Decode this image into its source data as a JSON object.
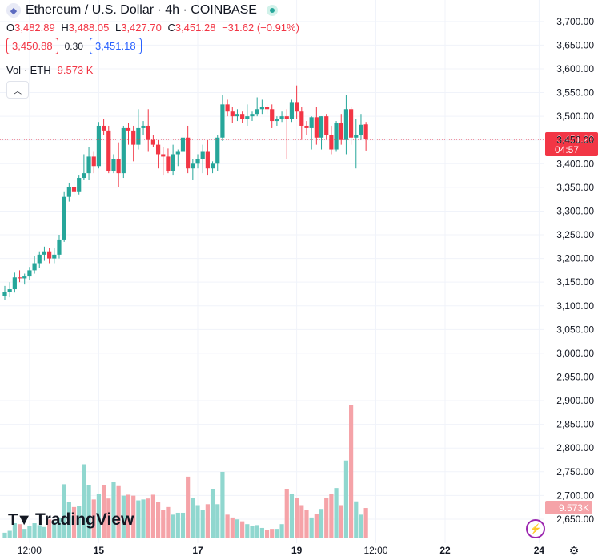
{
  "header": {
    "symbol_title": "Ethereum / U.S. Dollar · 4h · COINBASE",
    "ohlc": {
      "o_label": "O",
      "o": "3,482.89",
      "h_label": "H",
      "h": "3,488.05",
      "l_label": "L",
      "l": "3,427.70",
      "c_label": "C",
      "c": "3,451.28",
      "change": "−31.62 (−0.91%)"
    },
    "bid": "3,450.88",
    "spread": "0.30",
    "ask": "3,451.18",
    "volume_label": "Vol · ETH",
    "volume_value": "9.573 K"
  },
  "branding": {
    "logo_text": "TradingView"
  },
  "colors": {
    "up": "#26a69a",
    "down": "#f23645",
    "vol_up": "#90d7cf",
    "vol_down": "#f5a3a8"
  },
  "chart_data": {
    "type": "candlestick",
    "price_axis": {
      "ticks": [
        "3,700.00",
        "3,650.00",
        "3,600.00",
        "3,550.00",
        "3,500.00",
        "3,450.00",
        "3,400.00",
        "3,350.00",
        "3,300.00",
        "3,250.00",
        "3,200.00",
        "3,150.00",
        "3,100.00",
        "3,050.00",
        "3,000.00",
        "2,950.00",
        "2,900.00",
        "2,850.00",
        "2,800.00",
        "2,750.00",
        "2,700.00",
        "2,650.00"
      ],
      "range": [
        2633,
        3720
      ]
    },
    "time_axis": {
      "labels": [
        "12:00",
        "15",
        "17",
        "19",
        "12:00",
        "22",
        "24"
      ],
      "label_bar_index": [
        5,
        19,
        39,
        59,
        75,
        89,
        108
      ]
    },
    "last_price": "3,451.28",
    "countdown": "04:57",
    "last_volume": "9.573K",
    "candles": [
      [
        3120,
        3142,
        3112,
        3130
      ],
      [
        3130,
        3150,
        3118,
        3135
      ],
      [
        3135,
        3170,
        3128,
        3160
      ],
      [
        3160,
        3175,
        3150,
        3158
      ],
      [
        3158,
        3168,
        3145,
        3162
      ],
      [
        3162,
        3182,
        3155,
        3175
      ],
      [
        3175,
        3205,
        3168,
        3190
      ],
      [
        3190,
        3215,
        3180,
        3208
      ],
      [
        3208,
        3225,
        3195,
        3215
      ],
      [
        3215,
        3222,
        3190,
        3200
      ],
      [
        3200,
        3222,
        3190,
        3208
      ],
      [
        3208,
        3250,
        3200,
        3240
      ],
      [
        3240,
        3340,
        3235,
        3330
      ],
      [
        3330,
        3360,
        3320,
        3350
      ],
      [
        3350,
        3365,
        3330,
        3340
      ],
      [
        3340,
        3375,
        3335,
        3370
      ],
      [
        3370,
        3420,
        3365,
        3380
      ],
      [
        3380,
        3435,
        3365,
        3415
      ],
      [
        3415,
        3425,
        3380,
        3395
      ],
      [
        3395,
        3488,
        3390,
        3480
      ],
      [
        3480,
        3495,
        3460,
        3470
      ],
      [
        3470,
        3480,
        3380,
        3385
      ],
      [
        3385,
        3420,
        3380,
        3410
      ],
      [
        3410,
        3445,
        3350,
        3380
      ],
      [
        3380,
        3480,
        3370,
        3475
      ],
      [
        3475,
        3485,
        3440,
        3470
      ],
      [
        3470,
        3480,
        3405,
        3440
      ],
      [
        3440,
        3515,
        3430,
        3475
      ],
      [
        3475,
        3490,
        3460,
        3480
      ],
      [
        3480,
        3515,
        3425,
        3450
      ],
      [
        3450,
        3460,
        3435,
        3440
      ],
      [
        3440,
        3450,
        3390,
        3420
      ],
      [
        3420,
        3435,
        3375,
        3415
      ],
      [
        3415,
        3432,
        3380,
        3385
      ],
      [
        3385,
        3440,
        3375,
        3420
      ],
      [
        3420,
        3430,
        3395,
        3425
      ],
      [
        3425,
        3460,
        3410,
        3455
      ],
      [
        3455,
        3480,
        3380,
        3390
      ],
      [
        3390,
        3410,
        3365,
        3400
      ],
      [
        3400,
        3420,
        3390,
        3410
      ],
      [
        3410,
        3440,
        3380,
        3425
      ],
      [
        3425,
        3450,
        3375,
        3390
      ],
      [
        3390,
        3405,
        3380,
        3400
      ],
      [
        3400,
        3460,
        3385,
        3455
      ],
      [
        3455,
        3545,
        3448,
        3525
      ],
      [
        3525,
        3535,
        3500,
        3510
      ],
      [
        3510,
        3520,
        3485,
        3500
      ],
      [
        3500,
        3515,
        3490,
        3505
      ],
      [
        3505,
        3510,
        3485,
        3495
      ],
      [
        3495,
        3525,
        3480,
        3500
      ],
      [
        3500,
        3510,
        3490,
        3505
      ],
      [
        3505,
        3540,
        3500,
        3515
      ],
      [
        3515,
        3535,
        3505,
        3520
      ],
      [
        3520,
        3525,
        3505,
        3515
      ],
      [
        3515,
        3525,
        3475,
        3490
      ],
      [
        3490,
        3500,
        3480,
        3495
      ],
      [
        3495,
        3510,
        3488,
        3500
      ],
      [
        3500,
        3515,
        3410,
        3495
      ],
      [
        3495,
        3535,
        3488,
        3530
      ],
      [
        3530,
        3565,
        3495,
        3510
      ],
      [
        3510,
        3520,
        3450,
        3480
      ],
      [
        3480,
        3490,
        3460,
        3475
      ],
      [
        3475,
        3500,
        3430,
        3498
      ],
      [
        3498,
        3520,
        3440,
        3455
      ],
      [
        3455,
        3500,
        3430,
        3500
      ],
      [
        3500,
        3505,
        3450,
        3460
      ],
      [
        3460,
        3480,
        3420,
        3430
      ],
      [
        3430,
        3490,
        3425,
        3485
      ],
      [
        3485,
        3505,
        3440,
        3450
      ],
      [
        3450,
        3545,
        3420,
        3515
      ],
      [
        3515,
        3520,
        3440,
        3455
      ],
      [
        3455,
        3495,
        3390,
        3460
      ],
      [
        3460,
        3505,
        3450,
        3482
      ],
      [
        3482.89,
        3488.05,
        3427.7,
        3451.28
      ]
    ],
    "volume": [
      0.6,
      0.8,
      1.6,
      1.5,
      1.0,
      1.3,
      1.6,
      1.4,
      1.2,
      2.0,
      1.8,
      2.2,
      5.7,
      3.8,
      3.3,
      3.4,
      7.8,
      5.6,
      4.1,
      4.7,
      5.6,
      4.2,
      5.9,
      5.5,
      4.5,
      4.6,
      4.5,
      4.0,
      4.1,
      4.2,
      4.6,
      3.8,
      3.0,
      3.3,
      2.5,
      2.7,
      2.7,
      6.5,
      4.3,
      3.5,
      3.0,
      3.6,
      5.2,
      3.6,
      7.0,
      2.5,
      2.2,
      2.0,
      1.8,
      1.5,
      1.3,
      1.4,
      1.1,
      0.9,
      1.0,
      1.0,
      1.5,
      5.2,
      4.7,
      4.3,
      3.5,
      3.0,
      2.2,
      2.6,
      3.1,
      4.3,
      4.7,
      5.3,
      3.5,
      8.2,
      14.0,
      3.9,
      2.5,
      3.2
    ],
    "volume_ylim": [
      0,
      14.5
    ]
  }
}
